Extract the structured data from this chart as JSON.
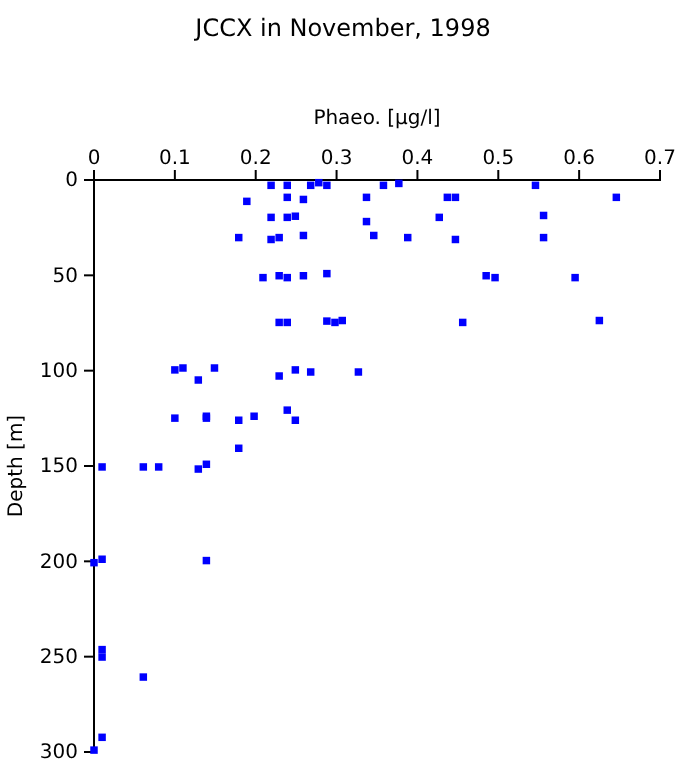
{
  "chart_data": {
    "type": "scatter",
    "title": "JCCX in November, 1998",
    "xlabel": "Phaeo. [µg/l]",
    "ylabel": "Depth [m]",
    "xlim": [
      0,
      0.7
    ],
    "xticks": [
      0,
      0.1,
      0.2,
      0.3,
      0.4,
      0.5,
      0.6,
      0.7
    ],
    "ylim": [
      300,
      0
    ],
    "yticks": [
      0,
      50,
      100,
      150,
      200,
      250,
      300
    ],
    "grid": false,
    "marker": "square",
    "series": [
      {
        "color": "#0000ff",
        "x": [
          0.219,
          0.239,
          0.268,
          0.278,
          0.288,
          0.239,
          0.259,
          0.189,
          0.337,
          0.219,
          0.239,
          0.249,
          0.337,
          0.179,
          0.219,
          0.229,
          0.259,
          0.346,
          0.209,
          0.229,
          0.239,
          0.259,
          0.288,
          0.229,
          0.239,
          0.288,
          0.298,
          0.307,
          0.358,
          0.377,
          0.546,
          0.437,
          0.447,
          0.646,
          0.427,
          0.556,
          0.388,
          0.447,
          0.556,
          0.485,
          0.496,
          0.595,
          0.456,
          0.625,
          0.1,
          0.11,
          0.129,
          0.149,
          0.229,
          0.249,
          0.268,
          0.327,
          0.1,
          0.139,
          0.139,
          0.179,
          0.198,
          0.239,
          0.249,
          0.179,
          0.01,
          0.061,
          0.08,
          0.129,
          0.139,
          0,
          0.01,
          0.139,
          0.01,
          0.01,
          0.061,
          0.01,
          0
        ],
        "values": [
          2.8,
          2.8,
          2.8,
          1.4,
          2.8,
          9.1,
          10.2,
          11.2,
          9.1,
          19.6,
          19.6,
          19,
          21.8,
          30.2,
          31.2,
          30.2,
          29.1,
          29.1,
          51.2,
          50.2,
          51.2,
          50.2,
          49.1,
          74.7,
          74.7,
          74,
          74.7,
          73.7,
          2.8,
          1.8,
          2.8,
          9.1,
          9.1,
          9.1,
          19.6,
          18.6,
          30.2,
          31.2,
          30.2,
          50.2,
          51.2,
          51.2,
          74.7,
          73.7,
          99.6,
          98.6,
          104.9,
          98.6,
          102.8,
          99.6,
          100.7,
          100.7,
          124.9,
          123.9,
          124.9,
          126,
          123.9,
          120.7,
          126,
          140.7,
          150.5,
          150.5,
          150.5,
          151.6,
          149.1,
          200.7,
          198.9,
          199.6,
          246.3,
          250.2,
          260.7,
          292.3,
          299
        ]
      }
    ]
  }
}
